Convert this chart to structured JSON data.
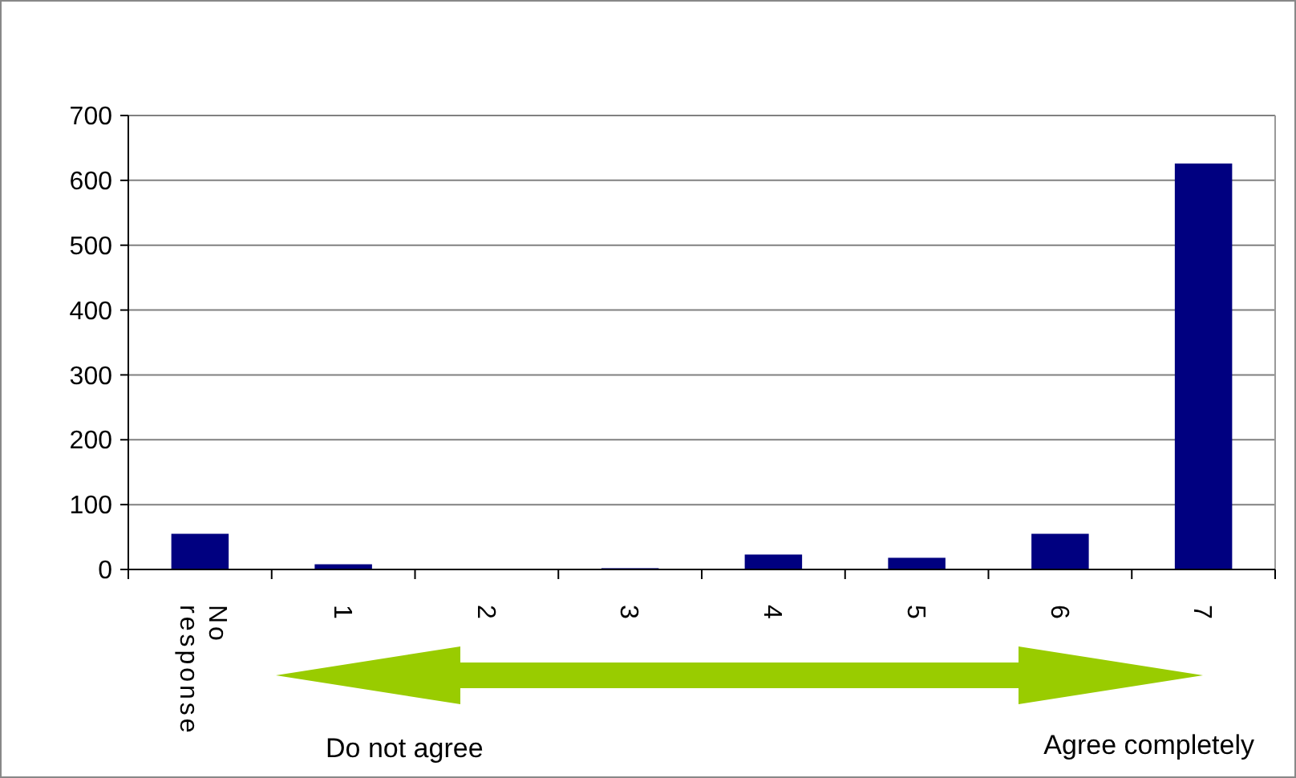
{
  "chart_data": {
    "type": "bar",
    "categories": [
      "No response",
      "1",
      "2",
      "3",
      "4",
      "5",
      "6",
      "7"
    ],
    "values": [
      55,
      8,
      0,
      2,
      23,
      18,
      55,
      626
    ],
    "color": "#000080",
    "ylim": [
      0,
      700
    ],
    "yticks": [
      0,
      100,
      200,
      300,
      400,
      500,
      600,
      700
    ],
    "grid": "y",
    "annotations": [
      "Do not agree",
      "Agree completely"
    ]
  }
}
